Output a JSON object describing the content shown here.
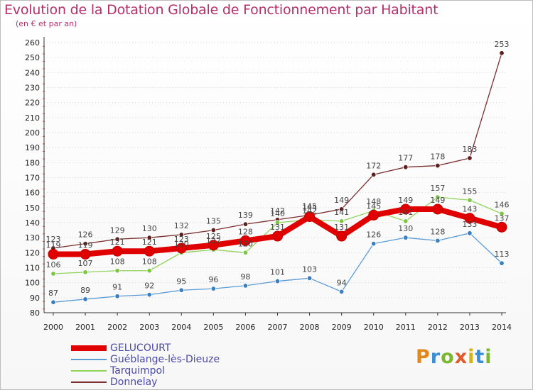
{
  "title": "Evolution de la Dotation Globale de Fonctionnement par Habitant",
  "subtitle": "(en € et par an)",
  "brand": {
    "text": "Proxiti",
    "colors": [
      "#e08a1e",
      "#3a8fd4",
      "#7cb82f",
      "#e05a2a",
      "#d4b21e",
      "#3a8fd4",
      "#7cb82f"
    ]
  },
  "chart_data": {
    "type": "line",
    "title": "Evolution de la Dotation Globale de Fonctionnement par Habitant",
    "subtitle": "(en € et par an)",
    "xlabel": "",
    "ylabel": "",
    "ylim": [
      80,
      260
    ],
    "ytick_step": 10,
    "grid": "horizontal dotted",
    "legend_position": "bottom-left",
    "x": [
      "2000",
      "2001",
      "2002",
      "2003",
      "2004",
      "2005",
      "2006",
      "2007",
      "2008",
      "2009",
      "2010",
      "2011",
      "2012",
      "2013",
      "2014"
    ],
    "series": [
      {
        "name": "GELUCOURT",
        "color": "#e00000",
        "dot_color": "#e00000",
        "values": [
          119,
          119,
          121,
          121,
          123,
          125,
          128,
          131,
          144,
          131,
          145,
          149,
          149,
          143,
          137
        ],
        "labels": [
          "119",
          "119",
          "121",
          "121",
          "123",
          "125",
          "128",
          "131",
          "144",
          "131",
          "145",
          "149",
          "149",
          "143",
          "137"
        ]
      },
      {
        "name": "Guéblange-lès-Dieuze",
        "color": "#5b9bd5",
        "dot_color": "#3a7fc0",
        "values": [
          87,
          89,
          91,
          92,
          95,
          96,
          98,
          101,
          103,
          94,
          126,
          130,
          128,
          133,
          113
        ],
        "labels": [
          "87",
          "89",
          "91",
          "92",
          "95",
          "96",
          "98",
          "101",
          "103",
          "94",
          "126",
          "130",
          "128",
          "133",
          "113"
        ]
      },
      {
        "name": "Tarquimpol",
        "color": "#8fd35a",
        "dot_color": "#7cc545",
        "values": [
          106,
          107,
          108,
          108,
          120,
          122,
          120,
          140,
          142,
          141,
          148,
          141,
          157,
          155,
          146
        ],
        "labels": [
          "106",
          "107",
          "108",
          "108",
          "120",
          "122",
          "120",
          "140",
          "142",
          "141",
          "148",
          "141",
          "157",
          "155",
          "146"
        ]
      },
      {
        "name": "Donnelay",
        "color": "#7a2e2e",
        "dot_color": "#5e1f1f",
        "values": [
          123,
          126,
          129,
          130,
          132,
          135,
          139,
          142,
          145,
          149,
          172,
          177,
          178,
          183,
          253
        ],
        "labels": [
          "123",
          "126",
          "129",
          "130",
          "132",
          "135",
          "139",
          "142",
          "145",
          "149",
          "172",
          "177",
          "178",
          "183",
          "253"
        ]
      }
    ]
  }
}
